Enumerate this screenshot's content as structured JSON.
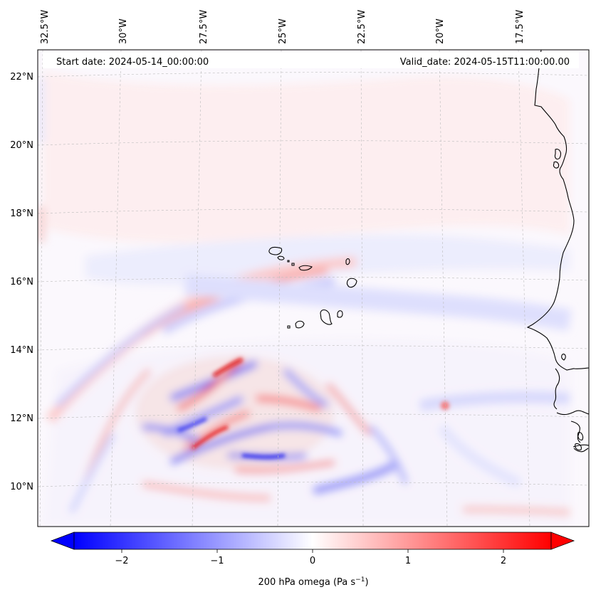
{
  "header": {
    "start_date": "Start date: 2024-05-14_00:00:00",
    "valid_date": "Valid_date: 2024-05-15T11:00:00.00"
  },
  "longitude_labels": [
    "32.5°W",
    "30°W",
    "27.5°W",
    "25°W",
    "22.5°W",
    "20°W",
    "17.5°W"
  ],
  "latitude_labels": [
    "22°N",
    "20°N",
    "18°N",
    "16°N",
    "14°N",
    "12°N",
    "10°N"
  ],
  "colorbar": {
    "tick_labels": [
      "−2",
      "−1",
      "0",
      "1",
      "2"
    ],
    "label": "200 hPa omega (Pa s",
    "label_exponent": "−1",
    "label_close": ")",
    "min": -2.5,
    "max": 2.5,
    "colormap": "bwr",
    "extend": "both"
  },
  "colors": {
    "negative": "#0000ff",
    "neutral": "#ffffff",
    "positive": "#ff0000",
    "coastline": "#000000",
    "gridline": "#bbbbbb"
  }
}
